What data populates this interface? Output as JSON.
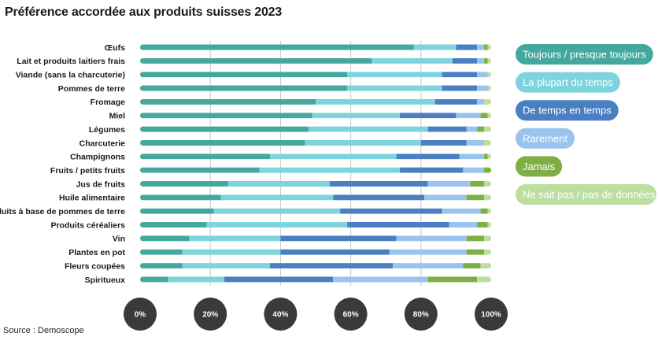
{
  "title": "Préférence accordée aux produits suisses 2023",
  "source": "Source : Demoscope",
  "chart_data": {
    "type": "bar",
    "orientation": "horizontal",
    "stacked": true,
    "title": "Préférence accordée aux produits suisses 2023",
    "xlim": [
      0,
      100
    ],
    "x_ticks": [
      "0%",
      "20%",
      "40%",
      "60%",
      "80%",
      "100%"
    ],
    "grid": true,
    "legend_position": "right",
    "categories": [
      "Œufs",
      "Lait et produits laitiers frais",
      "Viande (sans la charcuterie)",
      "Pommes de terre",
      "Fromage",
      "Miel",
      "Légumes",
      "Charcuterie",
      "Champignons",
      "Fruits / petits fruits",
      "Jus de fruits",
      "Huile alimentaire",
      "Produits à base de pommes de terre",
      "Produits céréaliers",
      "Vin",
      "Plantes en pot",
      "Fleurs coupées",
      "Spiritueux"
    ],
    "series": [
      {
        "name": "Toujours / presque toujours",
        "color": "#45a89e",
        "values": [
          78,
          66,
          59,
          59,
          50,
          49,
          48,
          47,
          37,
          34,
          25,
          23,
          21,
          19,
          14,
          12,
          12,
          8
        ]
      },
      {
        "name": "La plupart du temps",
        "color": "#7dd4dc",
        "values": [
          12,
          23,
          27,
          27,
          34,
          25,
          34,
          33,
          36,
          40,
          29,
          32,
          36,
          40,
          26,
          28,
          25,
          16
        ]
      },
      {
        "name": "De temps en temps",
        "color": "#4a7fc1",
        "values": [
          6,
          7,
          10,
          10,
          12,
          16,
          11,
          13,
          18,
          18,
          28,
          26,
          29,
          29,
          33,
          31,
          35,
          31
        ]
      },
      {
        "name": "Rarement",
        "color": "#9ac4ef",
        "values": [
          2,
          2,
          3,
          3,
          2,
          7,
          3,
          5,
          7,
          6,
          12,
          12,
          11,
          8,
          20,
          22,
          20,
          27
        ]
      },
      {
        "name": "Jamais",
        "color": "#7fae45",
        "values": [
          1,
          1,
          0,
          0,
          0,
          2,
          2,
          0,
          1,
          2,
          4,
          5,
          2,
          3,
          5,
          5,
          5,
          14
        ]
      },
      {
        "name": "Ne sait pas / pas de données",
        "color": "#bcdfa0",
        "values": [
          1,
          1,
          1,
          1,
          2,
          1,
          2,
          2,
          1,
          0,
          2,
          2,
          1,
          1,
          2,
          2,
          3,
          4
        ]
      }
    ]
  }
}
